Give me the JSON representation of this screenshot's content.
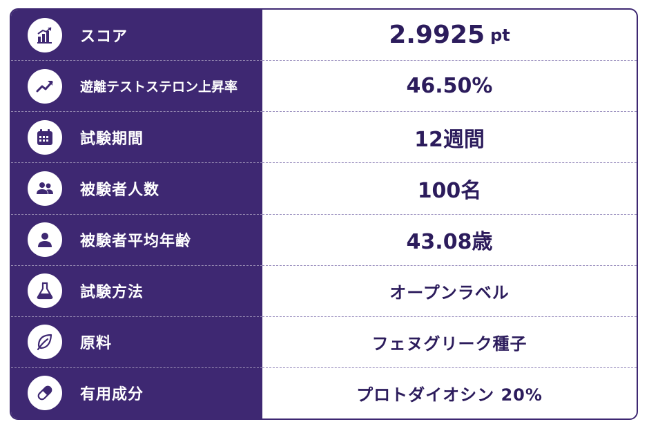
{
  "rows": [
    {
      "label": "スコア",
      "icon": "bar-chart-icon",
      "value": "2.9925",
      "unit": "pt"
    },
    {
      "label": "遊離テストステロン上昇率",
      "icon": "trend-up-icon",
      "value": "46.50%"
    },
    {
      "label": "試験期間",
      "icon": "calendar-icon",
      "value": "12週間"
    },
    {
      "label": "被験者人数",
      "icon": "users-icon",
      "value": "100名"
    },
    {
      "label": "被験者平均年齢",
      "icon": "person-icon",
      "value": "43.08歳"
    },
    {
      "label": "試験方法",
      "icon": "flask-icon",
      "value": "オープンラベル"
    },
    {
      "label": "原料",
      "icon": "leaf-icon",
      "value": "フェヌグリーク種子"
    },
    {
      "label": "有用成分",
      "icon": "capsule-icon",
      "value": "プロトダイオシン 20%"
    }
  ],
  "colors": {
    "panel": "#3e2872",
    "value_text": "#2c1c5c",
    "divider": "#9a8fbe"
  }
}
